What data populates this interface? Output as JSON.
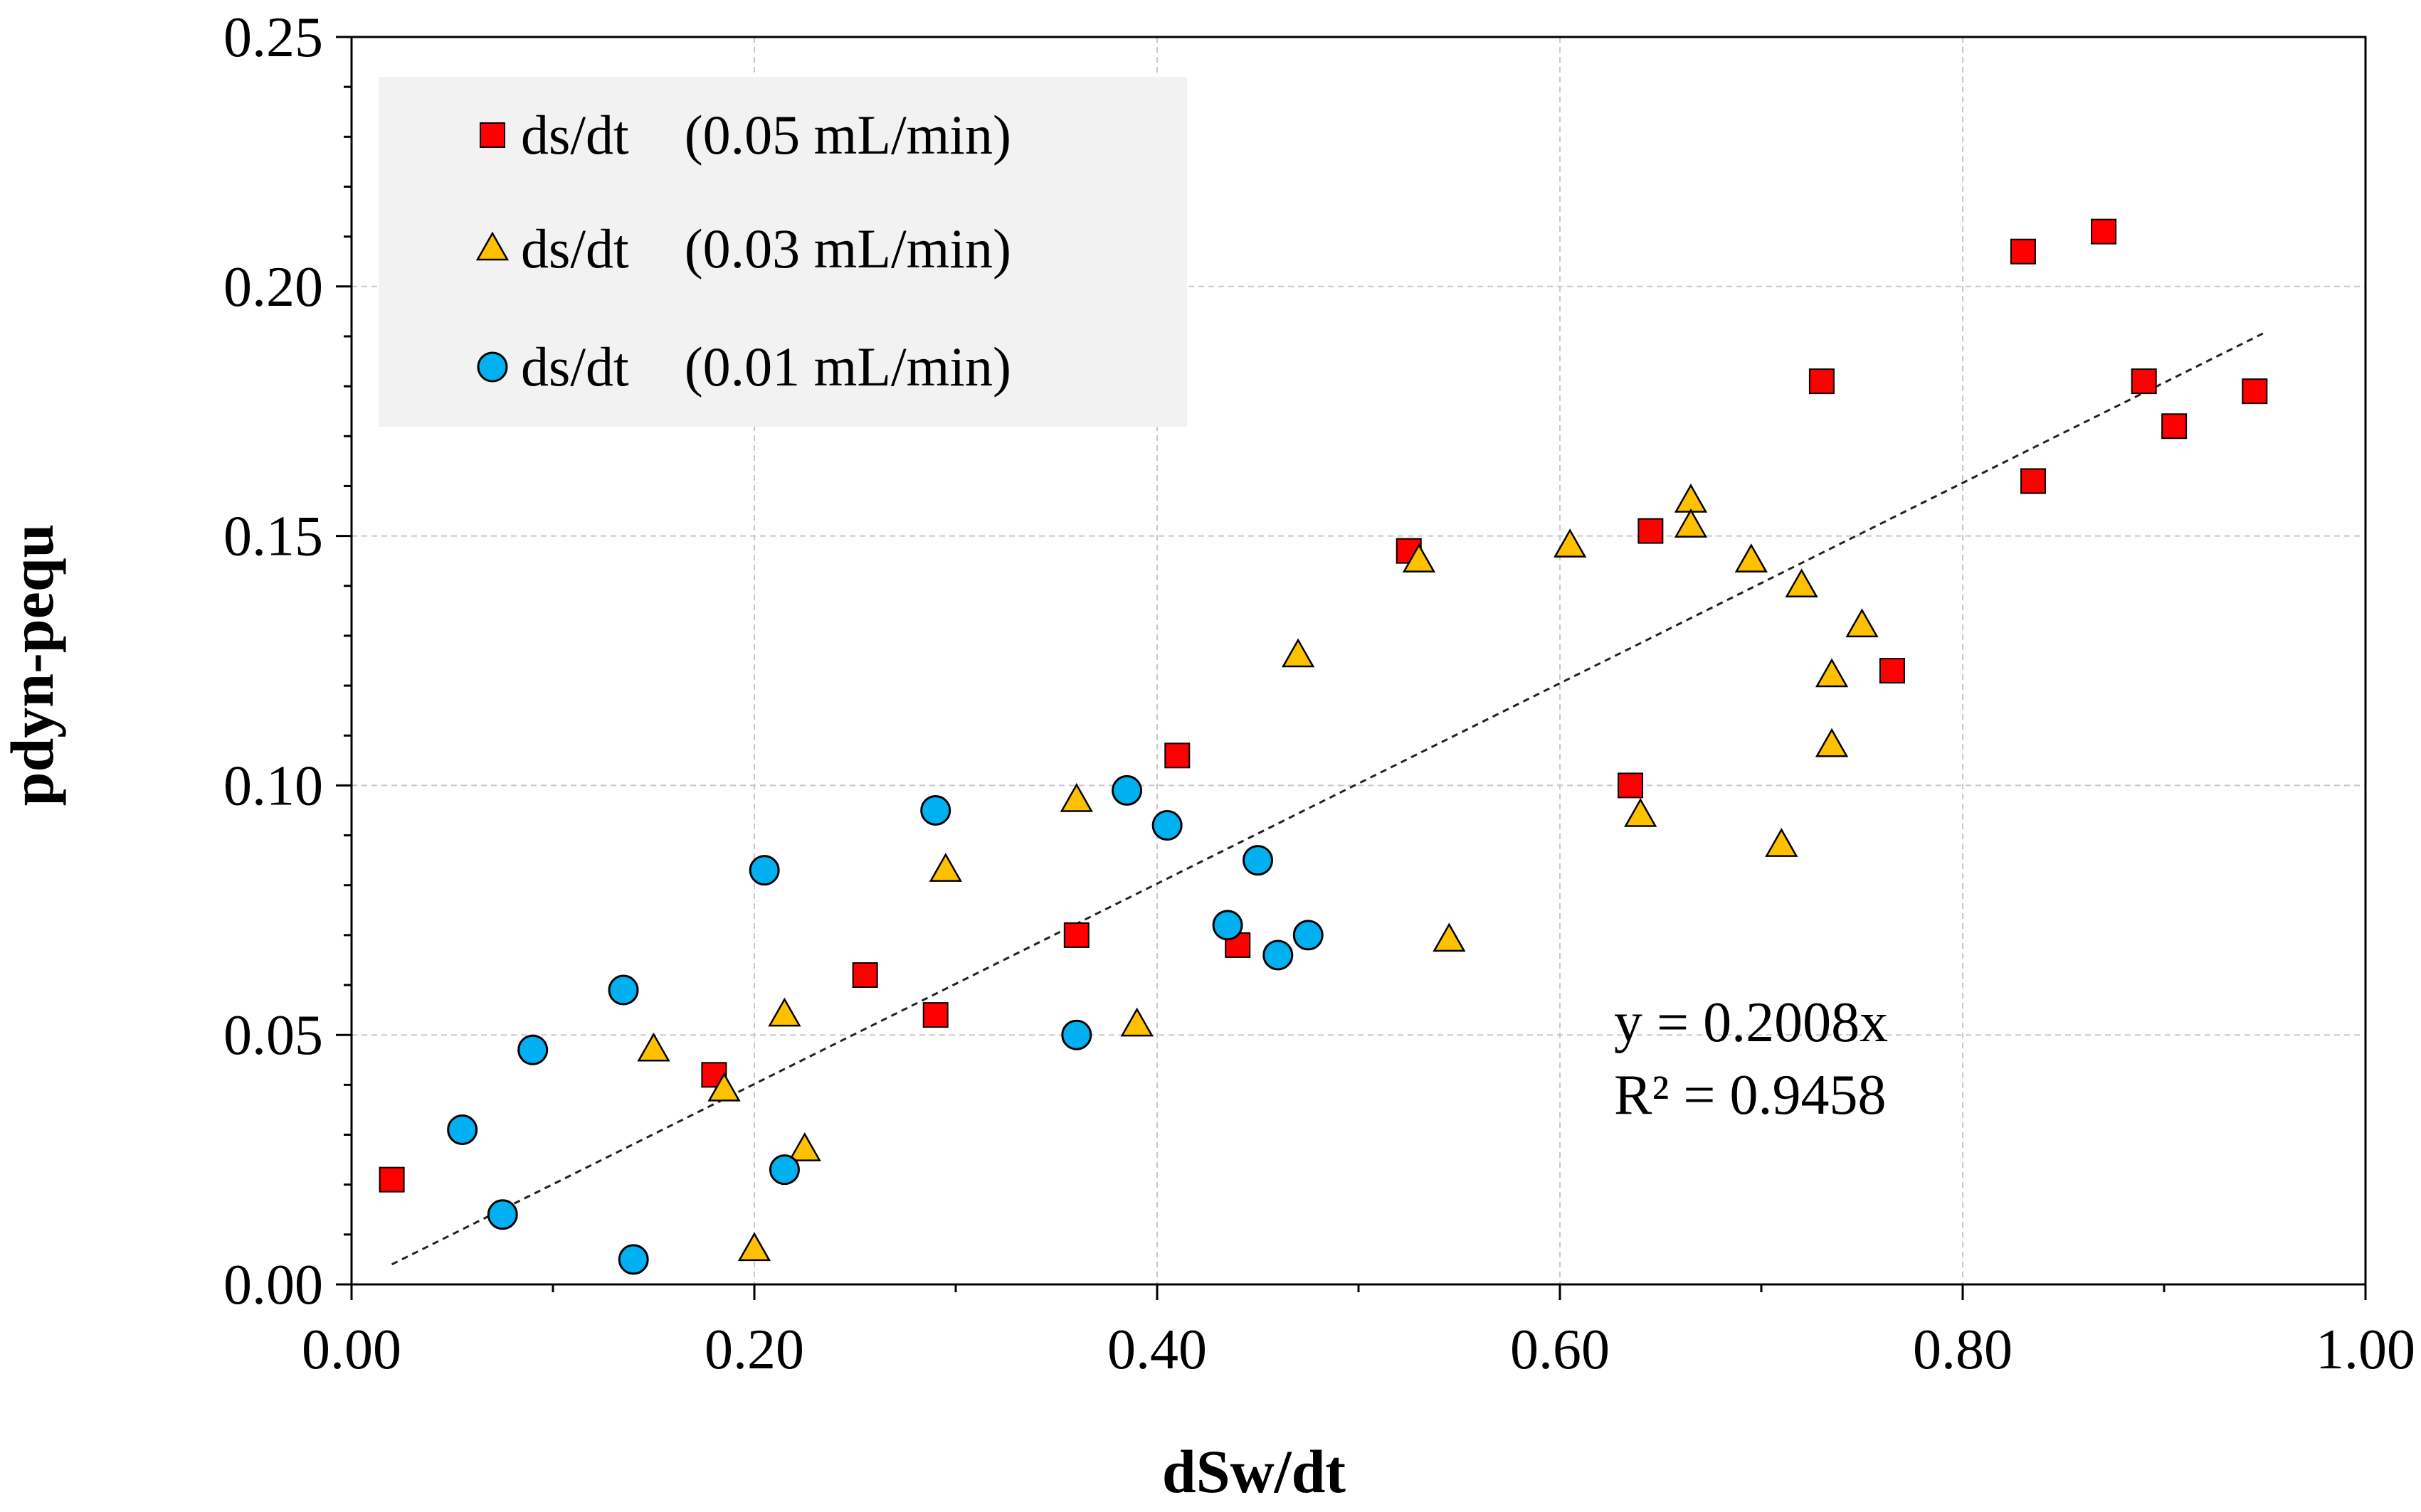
{
  "chart_data": {
    "type": "scatter",
    "title": "",
    "xlabel": "dSw/dt",
    "ylabel": "pdyn-pequ",
    "xlim": [
      0,
      1.0
    ],
    "ylim": [
      0,
      0.25
    ],
    "x_ticks": [
      "0.00",
      "0.20",
      "0.40",
      "0.60",
      "0.80",
      "1.00"
    ],
    "y_ticks": [
      "0.00",
      "0.05",
      "0.10",
      "0.15",
      "0.20",
      "0.25"
    ],
    "grid": true,
    "legend_position": "top-left",
    "series": [
      {
        "name": "ds/dt　(0.05 mL/min)",
        "marker": "square",
        "color": "#ff0000",
        "points": [
          [
            0.02,
            0.021
          ],
          [
            0.18,
            0.042
          ],
          [
            0.255,
            0.062
          ],
          [
            0.29,
            0.054
          ],
          [
            0.36,
            0.07
          ],
          [
            0.41,
            0.106
          ],
          [
            0.44,
            0.068
          ],
          [
            0.525,
            0.147
          ],
          [
            0.635,
            0.1
          ],
          [
            0.645,
            0.151
          ],
          [
            0.73,
            0.181
          ],
          [
            0.765,
            0.123
          ],
          [
            0.83,
            0.207
          ],
          [
            0.835,
            0.161
          ],
          [
            0.87,
            0.211
          ],
          [
            0.89,
            0.181
          ],
          [
            0.905,
            0.172
          ],
          [
            0.945,
            0.179
          ]
        ]
      },
      {
        "name": "ds/dt　(0.03 mL/min)",
        "marker": "triangle",
        "color": "#ffc000",
        "points": [
          [
            0.15,
            0.047
          ],
          [
            0.185,
            0.039
          ],
          [
            0.2,
            0.007
          ],
          [
            0.215,
            0.054
          ],
          [
            0.225,
            0.027
          ],
          [
            0.295,
            0.083
          ],
          [
            0.36,
            0.097
          ],
          [
            0.39,
            0.052
          ],
          [
            0.47,
            0.126
          ],
          [
            0.53,
            0.145
          ],
          [
            0.545,
            0.069
          ],
          [
            0.605,
            0.148
          ],
          [
            0.64,
            0.094
          ],
          [
            0.665,
            0.157
          ],
          [
            0.665,
            0.152
          ],
          [
            0.695,
            0.145
          ],
          [
            0.71,
            0.088
          ],
          [
            0.72,
            0.14
          ],
          [
            0.735,
            0.122
          ],
          [
            0.735,
            0.108
          ],
          [
            0.75,
            0.132
          ]
        ]
      },
      {
        "name": "ds/dt　(0.01 mL/min)",
        "marker": "circle",
        "color": "#00b0f0",
        "points": [
          [
            0.055,
            0.031
          ],
          [
            0.075,
            0.014
          ],
          [
            0.09,
            0.047
          ],
          [
            0.135,
            0.059
          ],
          [
            0.14,
            0.005
          ],
          [
            0.205,
            0.083
          ],
          [
            0.215,
            0.023
          ],
          [
            0.29,
            0.095
          ],
          [
            0.36,
            0.05
          ],
          [
            0.385,
            0.099
          ],
          [
            0.405,
            0.092
          ],
          [
            0.435,
            0.072
          ],
          [
            0.45,
            0.085
          ],
          [
            0.46,
            0.066
          ],
          [
            0.475,
            0.07
          ]
        ]
      }
    ],
    "trendline": {
      "style": "dotted",
      "x_range": [
        0.02,
        0.95
      ],
      "slope": 0.2008,
      "equation": "y = 0.2008x",
      "r_squared": "R² = 0.9458"
    }
  }
}
